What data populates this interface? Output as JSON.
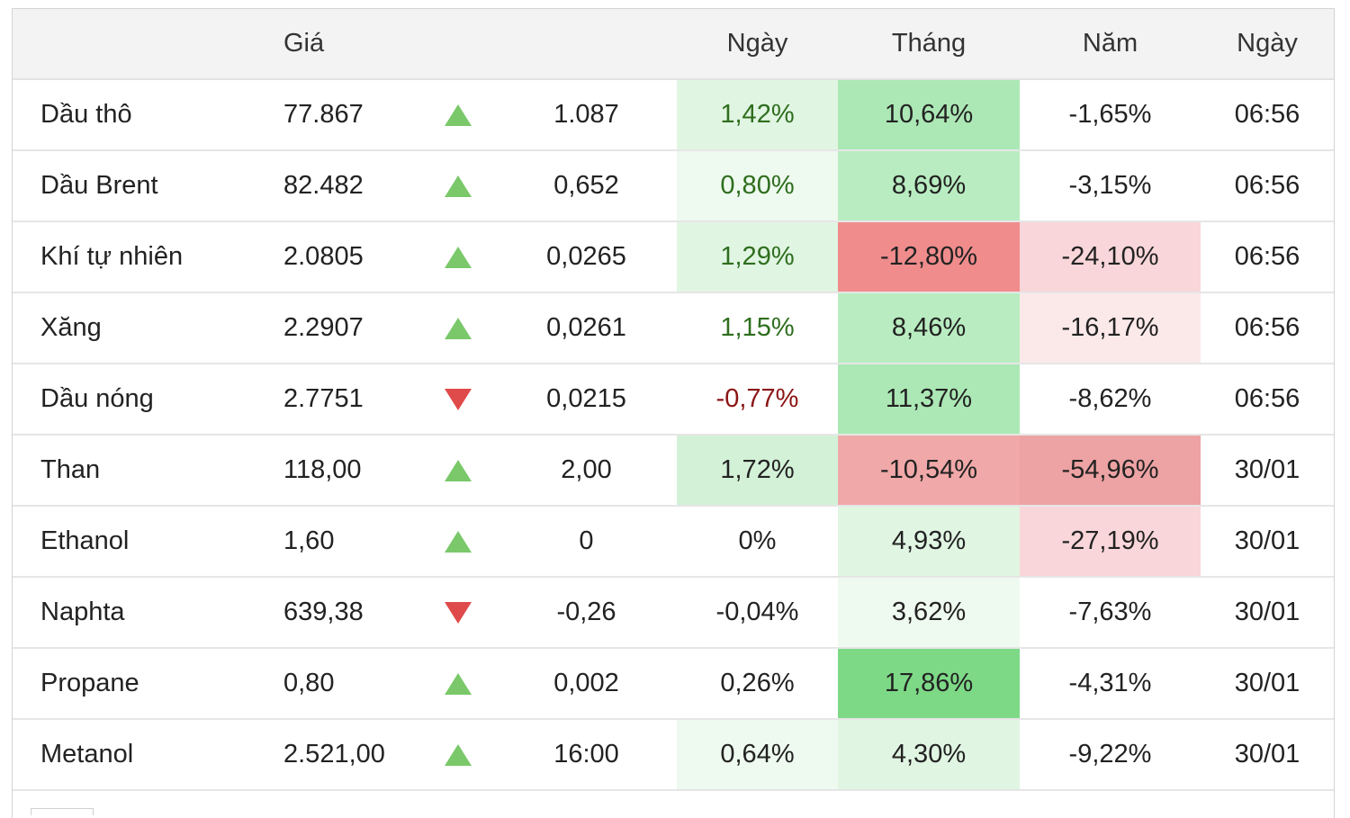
{
  "table": {
    "headers": {
      "name": "",
      "price": "Giá",
      "direction": "",
      "change": "",
      "day": "Ngày",
      "month": "Tháng",
      "year": "Năm",
      "time": "Ngày"
    },
    "rows": [
      {
        "name": "Dầu thô",
        "price": "77.867",
        "direction": "up",
        "change": "1.087",
        "day": "1,42%",
        "month": "10,64%",
        "year": "-1,65%",
        "time": "06:56",
        "day_bg": "#e1f5e3",
        "month_bg": "#ace8b5",
        "year_bg": "#ffffff"
      },
      {
        "name": "Dầu Brent",
        "price": "82.482",
        "direction": "up",
        "change": "0,652",
        "day": "0,80%",
        "month": "8,69%",
        "year": "-3,15%",
        "time": "06:56",
        "day_bg": "#eef9ef",
        "month_bg": "#b9edc1",
        "year_bg": "#ffffff"
      },
      {
        "name": "Khí tự nhiên",
        "price": "2.0805",
        "direction": "up",
        "change": "0,0265",
        "day": "1,29%",
        "month": "-12,80%",
        "year": "-24,10%",
        "time": "06:56",
        "day_bg": "#e1f5e3",
        "month_bg": "#f08c8c",
        "year_bg": "#f9d6d9"
      },
      {
        "name": "Xăng",
        "price": "2.2907",
        "direction": "up",
        "change": "0,0261",
        "day": "1,15%",
        "month": "8,46%",
        "year": "-16,17%",
        "time": "06:56",
        "day_bg": "#ffffff",
        "month_bg": "#b9edc1",
        "year_bg": "#fbe9ea"
      },
      {
        "name": "Dầu nóng",
        "price": "2.7751",
        "direction": "down",
        "change": "0,0215",
        "day": "-0,77%",
        "month": "11,37%",
        "year": "-8,62%",
        "time": "06:56",
        "day_bg": "#ffffff",
        "month_bg": "#ace8b5",
        "year_bg": "#ffffff"
      },
      {
        "name": "Than",
        "price": "118,00",
        "direction": "up",
        "change": "2,00",
        "day": "1,72%",
        "month": "-10,54%",
        "year": "-54,96%",
        "time": "30/01",
        "day_bg": "#d3f1d7",
        "month_bg": "#f0a8a8",
        "year_bg": "#eda2a3"
      },
      {
        "name": "Ethanol",
        "price": "1,60",
        "direction": "up",
        "change": "0",
        "day": "0%",
        "month": "4,93%",
        "year": "-27,19%",
        "time": "30/01",
        "day_bg": "#ffffff",
        "month_bg": "#e1f5e3",
        "year_bg": "#f9d6d9"
      },
      {
        "name": "Naphta",
        "price": "639,38",
        "direction": "down",
        "change": "-0,26",
        "day": "-0,04%",
        "month": "3,62%",
        "year": "-7,63%",
        "time": "30/01",
        "day_bg": "#ffffff",
        "month_bg": "#eef9ef",
        "year_bg": "#ffffff"
      },
      {
        "name": "Propane",
        "price": "0,80",
        "direction": "up",
        "change": "0,002",
        "day": "0,26%",
        "month": "17,86%",
        "year": "-4,31%",
        "time": "30/01",
        "day_bg": "#ffffff",
        "month_bg": "#7ed987",
        "year_bg": "#ffffff"
      },
      {
        "name": "Metanol",
        "price": "2.521,00",
        "direction": "up",
        "change": "16:00",
        "day": "0,64%",
        "month": "4,30%",
        "year": "-9,22%",
        "time": "30/01",
        "day_bg": "#eef9ef",
        "month_bg": "#e1f5e3",
        "year_bg": "#ffffff"
      }
    ]
  },
  "colors": {
    "up_arrow": "#7ac86a",
    "down_arrow": "#df4a4a",
    "up_text": "#2e6e1e",
    "down_text": "#8b1414",
    "header_bg": "#f3f3f3"
  }
}
